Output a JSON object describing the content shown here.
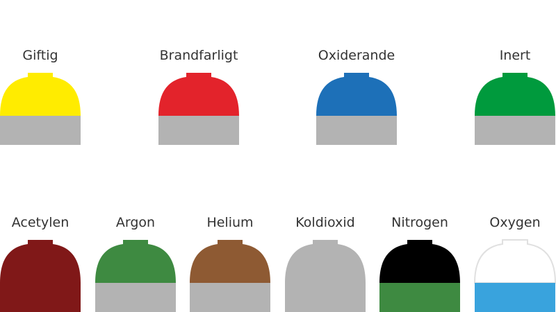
{
  "top_row": [
    {
      "label": "Giftig",
      "shoulder": "#ffec00",
      "body": "#b3b3b3"
    },
    {
      "label": "Brandfarligt",
      "shoulder": "#e3232b",
      "body": "#b3b3b3"
    },
    {
      "label": "Oxiderande",
      "shoulder": "#1d70b8",
      "body": "#b3b3b3"
    },
    {
      "label": "Inert",
      "shoulder": "#009a3d",
      "body": "#b3b3b3"
    }
  ],
  "bottom_row": [
    {
      "label": "Acetylen",
      "shoulder": "#801818",
      "body": "#801818"
    },
    {
      "label": "Argon",
      "shoulder": "#3e8a41",
      "body": "#b3b3b3"
    },
    {
      "label": "Helium",
      "shoulder": "#8e5a33",
      "body": "#b3b3b3"
    },
    {
      "label": "Koldioxid",
      "shoulder": "#b3b3b3",
      "body": "#b3b3b3"
    },
    {
      "label": "Nitrogen",
      "shoulder": "#000000",
      "body": "#3e8a41"
    },
    {
      "label": "Oxygen",
      "shoulder": "#ffffff",
      "body": "#39a3dd"
    }
  ]
}
